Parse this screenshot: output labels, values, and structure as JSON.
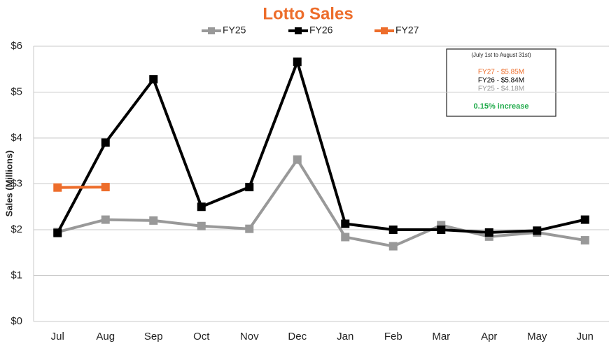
{
  "chart_data": {
    "type": "line",
    "title": "Lotto Sales",
    "y_label": "Sales (Millions)",
    "categories": [
      "Jul",
      "Aug",
      "Sep",
      "Oct",
      "Nov",
      "Dec",
      "Jan",
      "Feb",
      "Mar",
      "Apr",
      "May",
      "Jun"
    ],
    "series": [
      {
        "name": "FY25",
        "color": "#999999",
        "values": [
          1.95,
          2.22,
          2.2,
          2.08,
          2.02,
          3.53,
          1.84,
          1.64,
          2.1,
          1.85,
          1.94,
          1.77
        ]
      },
      {
        "name": "FY26",
        "color": "#000000",
        "values": [
          1.93,
          3.9,
          5.28,
          2.5,
          2.93,
          5.66,
          2.13,
          2.0,
          2.0,
          1.94,
          1.98,
          2.22
        ]
      },
      {
        "name": "FY27",
        "color": "#ed6d2b",
        "values": [
          2.92,
          2.93,
          null,
          null,
          null,
          null,
          null,
          null,
          null,
          null,
          null,
          null
        ]
      }
    ],
    "ylim": [
      0,
      6
    ],
    "yticks": [
      {
        "value": 0,
        "label": "$0"
      },
      {
        "value": 1,
        "label": "$1"
      },
      {
        "value": 2,
        "label": "$2"
      },
      {
        "value": 3,
        "label": "$3"
      },
      {
        "value": 4,
        "label": "$4"
      },
      {
        "value": 5,
        "label": "$5"
      },
      {
        "value": 6,
        "label": "$6"
      }
    ],
    "grid": true,
    "annotation": {
      "note": "(July 1st to August 31st)",
      "lines": [
        {
          "text": "FY27 - $5.85M",
          "color": "#ed6d2b"
        },
        {
          "text": "FY26 - $5.84M",
          "color": "#000000"
        },
        {
          "text": "FY25 - $4.18M",
          "color": "#999999"
        }
      ],
      "summary": "0.15% increase",
      "summary_color": "#1faa4a"
    }
  }
}
